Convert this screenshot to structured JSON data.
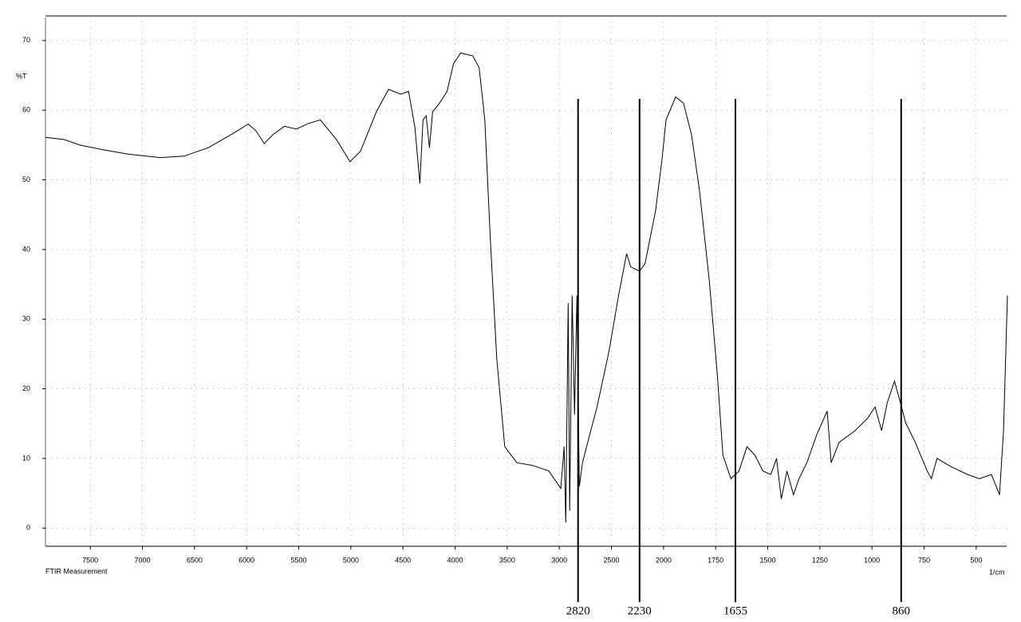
{
  "chart_data": {
    "type": "line",
    "y_label": "%T",
    "x_label": "FTIR Measurement",
    "x_unit": "1/cm",
    "x": [
      7930,
      7754,
      7600,
      7369,
      7138,
      6831,
      6600,
      6369,
      6138,
      5985,
      5908,
      5831,
      5754,
      5638,
      5523,
      5408,
      5292,
      5138,
      5008,
      4908,
      4754,
      4638,
      4523,
      4446,
      4385,
      4338,
      4308,
      4277,
      4246,
      4215,
      4154,
      4077,
      4015,
      3946,
      3831,
      3769,
      3715,
      3662,
      3600,
      3523,
      3408,
      3254,
      3100,
      2985,
      2954,
      2938,
      2915,
      2900,
      2877,
      2854,
      2831,
      2808,
      2777,
      2738,
      2638,
      2523,
      2431,
      2354,
      2315,
      2231,
      2177,
      2077,
      2015,
      1988,
      1942,
      1904,
      1865,
      1827,
      1781,
      1742,
      1715,
      1677,
      1638,
      1600,
      1562,
      1523,
      1485,
      1458,
      1435,
      1408,
      1377,
      1350,
      1312,
      1265,
      1215,
      1196,
      1158,
      1081,
      1023,
      985,
      954,
      927,
      892,
      869,
      838,
      792,
      735,
      715,
      688,
      619,
      542,
      485,
      427,
      388,
      369,
      350
    ],
    "series": [
      {
        "color": "#000000",
        "values": [
          56.1,
          55.8,
          55.0,
          54.3,
          53.7,
          53.2,
          53.4,
          54.6,
          56.6,
          58.0,
          57.0,
          55.2,
          56.4,
          57.7,
          57.3,
          58.1,
          58.6,
          55.8,
          52.6,
          54.1,
          59.8,
          63.0,
          62.3,
          62.7,
          57.5,
          49.5,
          58.6,
          59.2,
          54.6,
          59.8,
          60.9,
          62.7,
          66.7,
          68.2,
          67.8,
          66.1,
          58.6,
          41.5,
          24.3,
          11.7,
          9.4,
          9.0,
          8.2,
          5.7,
          11.7,
          0.8,
          32.3,
          2.5,
          33.4,
          16.3,
          33.4,
          6.0,
          9.4,
          11.7,
          17.4,
          25.4,
          33.4,
          39.4,
          37.5,
          36.9,
          38.0,
          45.5,
          52.9,
          58.6,
          61.9,
          61.0,
          56.4,
          48.3,
          35.7,
          22.0,
          10.5,
          7.1,
          8.2,
          11.7,
          10.5,
          8.2,
          7.7,
          10.0,
          4.2,
          8.2,
          4.8,
          7.1,
          9.4,
          13.4,
          16.8,
          9.4,
          12.3,
          14.0,
          15.7,
          17.4,
          14.0,
          18.0,
          21.1,
          18.6,
          15.1,
          12.3,
          8.2,
          7.1,
          10.0,
          8.8,
          7.7,
          7.1,
          7.7,
          4.8,
          14.0,
          33.4
        ]
      }
    ],
    "xlim": [
      7930,
      354
    ],
    "xticks": [
      7500,
      7000,
      6500,
      6000,
      5500,
      5000,
      4500,
      4000,
      3500,
      3000,
      2500,
      2000,
      1750,
      1500,
      1250,
      1000,
      750,
      500
    ],
    "ylim": [
      -2.6,
      73.3
    ],
    "yticks": [
      0,
      10,
      20,
      30,
      40,
      50,
      60,
      70
    ],
    "grid": true,
    "annotations": [
      2820,
      2230,
      1655,
      860
    ]
  }
}
